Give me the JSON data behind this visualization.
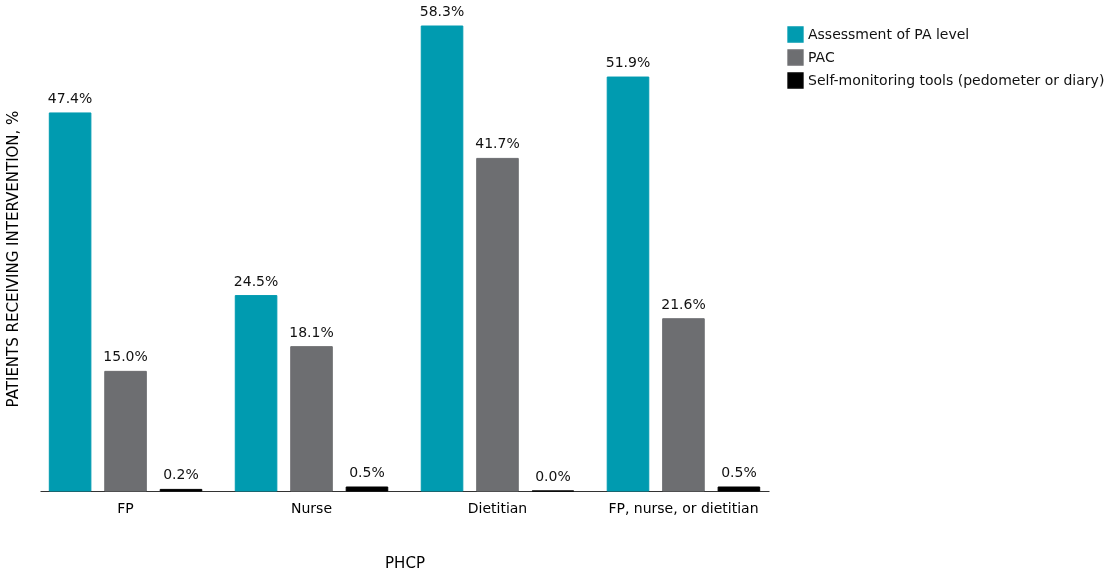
{
  "chart_data": {
    "type": "bar",
    "xlabel": "PHCP",
    "ylabel": "PATIENTS RECEIVING INTERVENTION, %",
    "categories": [
      "FP",
      "Nurse",
      "Dietitian",
      "FP, nurse, or dietitian"
    ],
    "series": [
      {
        "name": "Assessment of PA level",
        "color": "#009bb0",
        "values": [
          47.4,
          24.5,
          58.3,
          51.9
        ],
        "value_labels": [
          "47.4%",
          "24.5%",
          "58.3%",
          "51.9%"
        ]
      },
      {
        "name": "PAC",
        "color": "#6d6e71",
        "values": [
          15.0,
          18.1,
          41.7,
          21.6
        ],
        "value_labels": [
          "15.0%",
          "18.1%",
          "41.7%",
          "21.6%"
        ]
      },
      {
        "name": "Self-monitoring tools (pedometer or diary)",
        "color": "#000000",
        "values": [
          0.2,
          0.5,
          0.0,
          0.5
        ],
        "value_labels": [
          "0.2%",
          "0.5%",
          "0.0%",
          "0.5%"
        ]
      }
    ],
    "legend": "top right",
    "grid": false,
    "tick_labels": "x"
  }
}
